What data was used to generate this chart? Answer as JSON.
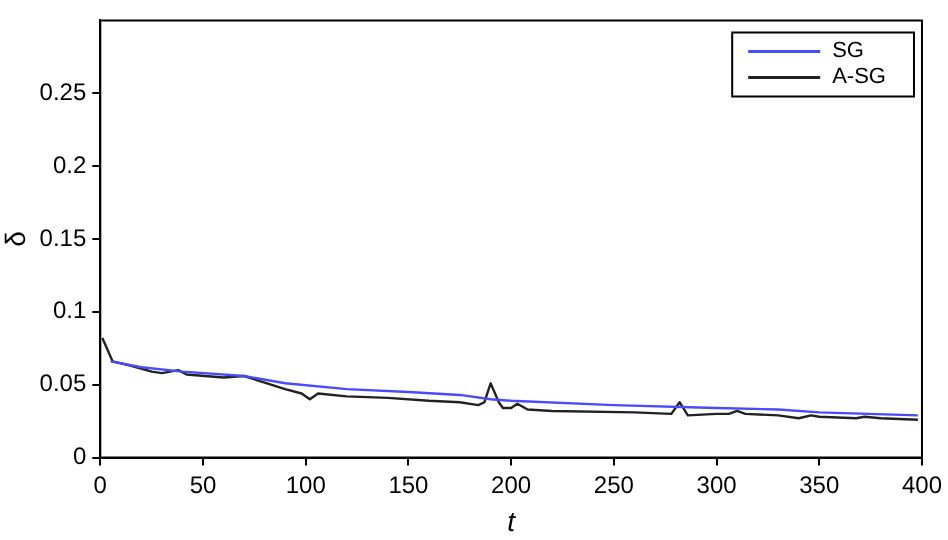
{
  "chart_data": {
    "type": "line",
    "xlabel": "t",
    "ylabel": "δ",
    "xlim": [
      0,
      400
    ],
    "ylim": [
      0,
      0.3
    ],
    "xticks": [
      0,
      50,
      100,
      150,
      200,
      250,
      300,
      350,
      400
    ],
    "yticks": [
      0,
      0.05,
      0.1,
      0.15,
      0.2,
      0.25
    ],
    "grid": false,
    "legend": "top right",
    "marker": "none",
    "line_style": "solid",
    "series": [
      {
        "name": "SG",
        "color": "#4a4aff",
        "x": [
          5,
          20,
          40,
          70,
          90,
          120,
          150,
          175,
          190,
          200,
          250,
          300,
          330,
          350,
          398
        ],
        "values": [
          0.066,
          0.062,
          0.059,
          0.056,
          0.051,
          0.047,
          0.045,
          0.043,
          0.04,
          0.039,
          0.036,
          0.034,
          0.033,
          0.031,
          0.029
        ]
      },
      {
        "name": "A-SG",
        "color": "#222222",
        "x": [
          1,
          6,
          15,
          25,
          30,
          38,
          42,
          60,
          70,
          90,
          98,
          102,
          106,
          120,
          140,
          160,
          175,
          184,
          187,
          190,
          194,
          196,
          200,
          203,
          208,
          220,
          260,
          278,
          282,
          286,
          300,
          306,
          310,
          314,
          330,
          340,
          346,
          350,
          368,
          372,
          380,
          398
        ],
        "values": [
          0.082,
          0.066,
          0.063,
          0.059,
          0.058,
          0.06,
          0.057,
          0.055,
          0.056,
          0.047,
          0.044,
          0.04,
          0.044,
          0.042,
          0.041,
          0.039,
          0.038,
          0.036,
          0.038,
          0.051,
          0.038,
          0.034,
          0.034,
          0.037,
          0.033,
          0.032,
          0.031,
          0.03,
          0.038,
          0.029,
          0.03,
          0.03,
          0.032,
          0.03,
          0.029,
          0.027,
          0.029,
          0.028,
          0.027,
          0.028,
          0.027,
          0.026
        ]
      }
    ]
  }
}
